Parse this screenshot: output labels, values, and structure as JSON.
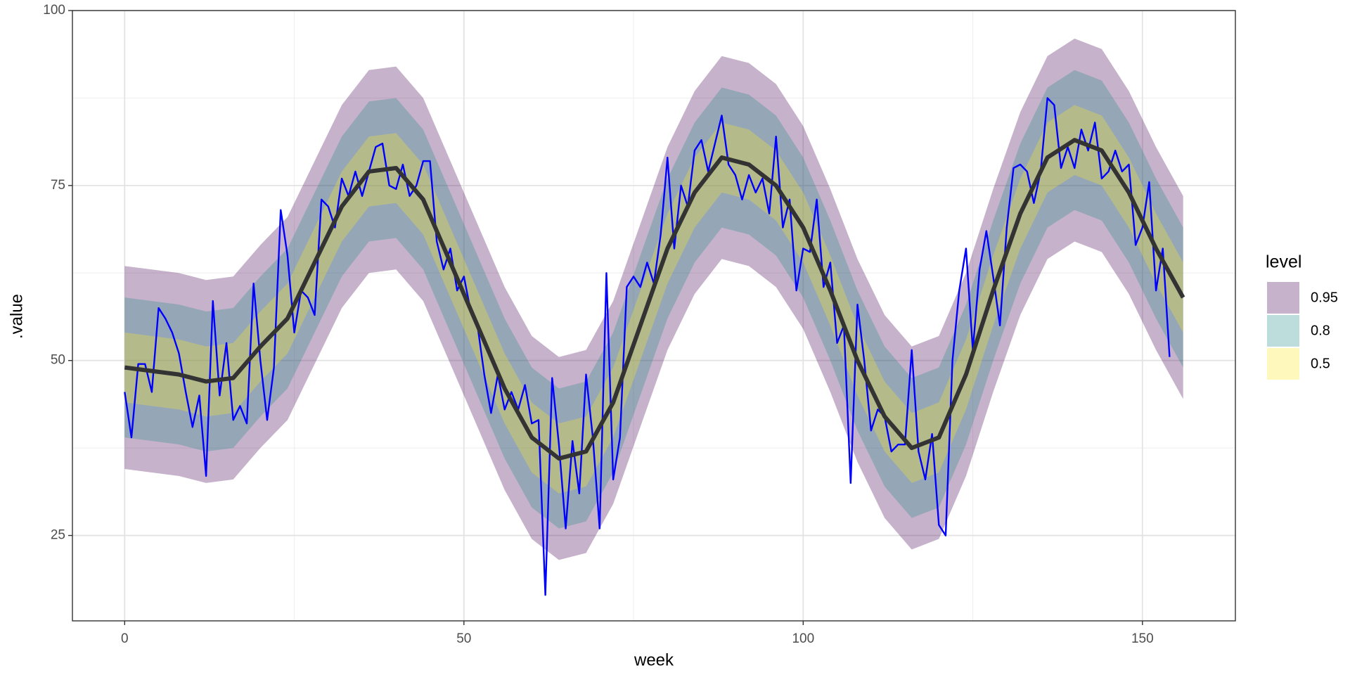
{
  "chart_data": {
    "type": "line",
    "x_label": "week",
    "y_label": ".value",
    "xlim": [
      -7.7,
      163.7
    ],
    "ylim": [
      12.8,
      100
    ],
    "xticks": [
      0,
      50,
      100,
      150
    ],
    "yticks": [
      25,
      50,
      75,
      100
    ],
    "grid": true,
    "legend": "right",
    "legend_title": "level",
    "bands": {
      "x": [
        0,
        4,
        8,
        12,
        16,
        20,
        24,
        28,
        32,
        36,
        40,
        44,
        48,
        52,
        56,
        60,
        64,
        68,
        72,
        76,
        80,
        84,
        88,
        92,
        96,
        100,
        104,
        108,
        112,
        116,
        120,
        124,
        128,
        132,
        136,
        140,
        144,
        148,
        152,
        156
      ],
      "levels": [
        {
          "name": "0.95",
          "color": "#440154",
          "lower": [
            34.5,
            34,
            33.5,
            32.5,
            33,
            37.5,
            41.5,
            49.5,
            57.5,
            62.5,
            63,
            58.5,
            49.5,
            40.5,
            31.5,
            24.5,
            21.5,
            22.5,
            29.5,
            40.5,
            51.5,
            59.5,
            64.5,
            63.5,
            60.5,
            54.5,
            45.5,
            35.5,
            27.5,
            23,
            24.5,
            33.5,
            45.5,
            56.5,
            64.5,
            67,
            65.5,
            59.5,
            51.5,
            44.5
          ],
          "upper": [
            63.5,
            63,
            62.5,
            61.5,
            62,
            66.5,
            70.5,
            78.5,
            86.5,
            91.5,
            92,
            87.5,
            78.5,
            69.5,
            60.5,
            53.5,
            50.5,
            51.5,
            58.5,
            69.5,
            80.5,
            88.5,
            93.5,
            92.5,
            89.5,
            83.5,
            74.5,
            64.5,
            56.5,
            52,
            53.5,
            62.5,
            74.5,
            85.5,
            93.5,
            96,
            94.5,
            88.5,
            80.5,
            73.5
          ]
        },
        {
          "name": "0.8",
          "color": "#21908C",
          "lower": [
            39,
            38.5,
            38,
            37,
            37.5,
            42,
            46,
            54,
            62,
            67,
            67.5,
            63,
            54,
            45,
            36,
            29,
            26,
            27,
            34,
            45,
            56,
            64,
            69,
            68,
            65,
            59,
            50,
            40,
            32,
            27.5,
            29,
            38,
            50,
            61,
            69,
            71.5,
            70,
            64,
            56,
            49
          ],
          "upper": [
            59,
            58.5,
            58,
            57,
            57.5,
            62,
            66,
            74,
            82,
            87,
            87.5,
            83,
            74,
            65,
            56,
            49,
            46,
            47,
            54,
            65,
            76,
            84,
            89,
            88,
            85,
            79,
            70,
            60,
            52,
            47.5,
            49,
            58,
            70,
            81,
            89,
            91.5,
            90,
            84,
            76,
            69
          ]
        },
        {
          "name": "0.5",
          "color": "#FDE725",
          "lower": [
            44,
            43.5,
            43,
            42,
            42.5,
            47,
            51,
            59,
            67,
            72,
            72.5,
            68,
            59,
            50,
            41,
            34,
            31,
            32,
            39,
            50,
            61,
            69,
            74,
            73,
            70,
            64,
            55,
            45,
            37,
            32.5,
            34,
            43,
            55,
            66,
            74,
            76.5,
            75,
            69,
            61,
            54
          ],
          "upper": [
            54,
            53.5,
            53,
            52,
            52.5,
            57,
            61,
            69,
            77,
            82,
            82.5,
            78,
            69,
            60,
            51,
            44,
            41,
            42,
            49,
            60,
            71,
            79,
            84,
            83,
            80,
            74,
            65,
            55,
            47,
            42.5,
            44,
            53,
            65,
            76,
            84,
            86.5,
            85,
            79,
            71,
            64
          ]
        }
      ]
    },
    "series": [
      {
        "color": "#0000ff",
        "width": 2.4,
        "x": [
          0,
          1,
          2,
          3,
          4,
          5,
          6,
          7,
          8,
          9,
          10,
          11,
          12,
          13,
          14,
          15,
          16,
          17,
          18,
          19,
          20,
          21,
          22,
          23,
          24,
          25,
          26,
          27,
          28,
          29,
          30,
          31,
          32,
          33,
          34,
          35,
          36,
          37,
          38,
          39,
          40,
          41,
          42,
          43,
          44,
          45,
          46,
          47,
          48,
          49,
          50,
          51,
          52,
          53,
          54,
          55,
          56,
          57,
          58,
          59,
          60,
          61,
          62,
          63,
          64,
          65,
          66,
          67,
          68,
          69,
          70,
          71,
          72,
          73,
          74,
          75,
          76,
          77,
          78,
          79,
          80,
          81,
          82,
          83,
          84,
          85,
          86,
          87,
          88,
          89,
          90,
          91,
          92,
          93,
          94,
          95,
          96,
          97,
          98,
          99,
          100,
          101,
          102,
          103,
          104,
          105,
          106,
          107,
          108,
          109,
          110,
          111,
          112,
          113,
          114,
          115,
          116,
          117,
          118,
          119,
          120,
          121,
          122,
          123,
          124,
          125,
          126,
          127,
          128,
          129,
          130,
          131,
          132,
          133,
          134,
          135,
          136,
          137,
          138,
          139,
          140,
          141,
          142,
          143,
          144,
          145,
          146,
          147,
          148,
          149,
          150,
          151,
          152,
          153,
          154
        ],
        "values": [
          45.5,
          39,
          49.5,
          49.5,
          45.5,
          57.5,
          56,
          54,
          51,
          45.5,
          40.5,
          45,
          33.5,
          58.5,
          45,
          52.5,
          41.5,
          43.5,
          41,
          61,
          50,
          41.5,
          49,
          71.5,
          65,
          54,
          60,
          59,
          56.5,
          73,
          72,
          69,
          76,
          73.5,
          77,
          73.5,
          77,
          80.5,
          81,
          75,
          74.5,
          78,
          73.5,
          75,
          78.5,
          78.5,
          67,
          63,
          66,
          60,
          62,
          57,
          55,
          48,
          42.5,
          48,
          43,
          45.5,
          43,
          46.5,
          41,
          41.5,
          16.5,
          47.5,
          38,
          26,
          38.5,
          31,
          48,
          39,
          26,
          62.5,
          33,
          39,
          60.5,
          62,
          60.5,
          64,
          61,
          68,
          79,
          66,
          75,
          72,
          80,
          81.5,
          77,
          81,
          85,
          78,
          76.5,
          73,
          76.5,
          74,
          76,
          71,
          82,
          69,
          73,
          60,
          66,
          65.5,
          73,
          60.5,
          64,
          52.5,
          55,
          32.5,
          58,
          50,
          40,
          43,
          42,
          37,
          38,
          38,
          51.5,
          37,
          33,
          39.5,
          26.5,
          25,
          50,
          60,
          66,
          51.5,
          63,
          68.5,
          62,
          55,
          69,
          77.5,
          78,
          77,
          72.5,
          77,
          87.5,
          86.5,
          77.5,
          80.5,
          77.5,
          83,
          80,
          84,
          76,
          77,
          80,
          77,
          78,
          66.5,
          69,
          75.5,
          60,
          66,
          50.5
        ]
      },
      {
        "color": "#333333",
        "width": 6,
        "x": [
          0,
          4,
          8,
          12,
          16,
          20,
          24,
          28,
          32,
          36,
          40,
          44,
          48,
          52,
          56,
          60,
          64,
          68,
          72,
          76,
          80,
          84,
          88,
          92,
          96,
          100,
          104,
          108,
          112,
          116,
          120,
          124,
          128,
          132,
          136,
          140,
          144,
          148,
          152,
          156
        ],
        "values": [
          49,
          48.5,
          48,
          47,
          47.5,
          52,
          56,
          64,
          72,
          77,
          77.5,
          73,
          64,
          55,
          46,
          39,
          36,
          37,
          44,
          55,
          66,
          74,
          79,
          78,
          75,
          69,
          60,
          50,
          42,
          37.5,
          39,
          48,
          60,
          71,
          79,
          81.5,
          80,
          74,
          66,
          59
        ]
      }
    ]
  }
}
